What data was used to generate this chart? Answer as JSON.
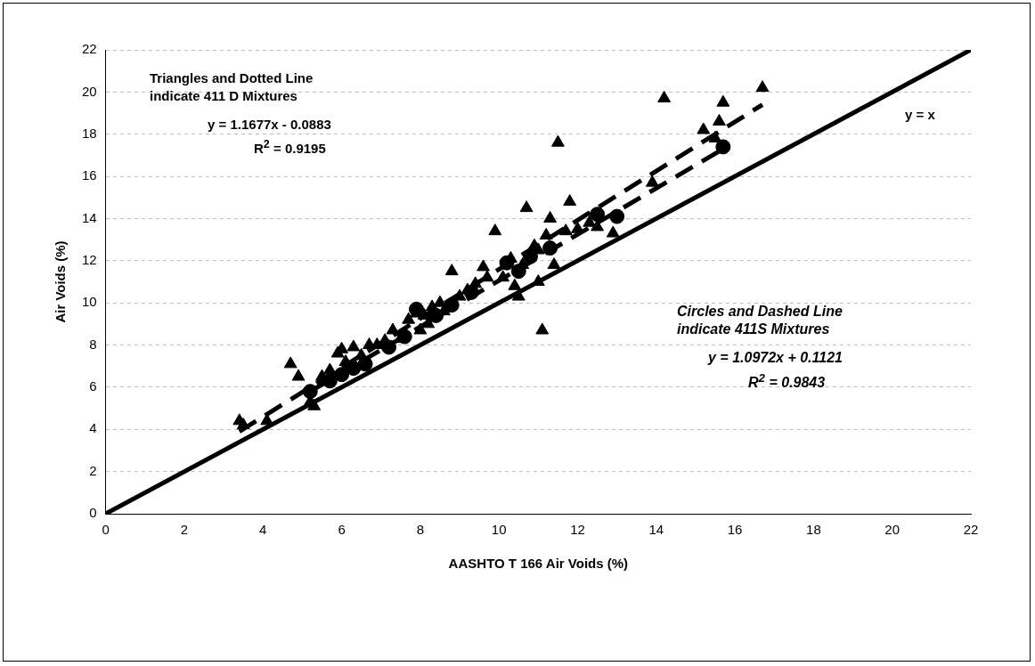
{
  "chart_data": {
    "type": "scatter",
    "xlabel": "AASHTO T 166 Air Voids (%)",
    "ylabel": "Air Voids (%)",
    "xlim": [
      0,
      22
    ],
    "ylim": [
      0,
      22
    ],
    "xticks": [
      0,
      2,
      4,
      6,
      8,
      10,
      12,
      14,
      16,
      18,
      20,
      22
    ],
    "yticks": [
      0,
      2,
      4,
      6,
      8,
      10,
      12,
      14,
      16,
      18,
      20,
      22
    ],
    "grid": "y",
    "legend": false,
    "annotations": [
      "Triangles and Dotted Line indicate 411 D Mixtures",
      "y = 1.1677x - 0.0883",
      "R$^{2}$ = 0.9195",
      "Circles and Dashed Line indicate 411S Mixtures",
      "y = 1.0972x + 0.1121",
      "R$^{2}$ = 0.9843",
      "y = x"
    ],
    "series": [
      {
        "marker": "triangle",
        "color": "#000000",
        "x": [
          3.4,
          3.5,
          4.1,
          4.7,
          4.9,
          5.2,
          5.3,
          5.5,
          5.7,
          5.9,
          6.0,
          6.1,
          6.3,
          6.5,
          6.7,
          6.9,
          7.1,
          7.3,
          7.5,
          7.7,
          7.9,
          8.1,
          8.3,
          8.5,
          8.6,
          8.8,
          9.0,
          9.2,
          9.4,
          9.6,
          9.7,
          9.9,
          10.1,
          10.4,
          10.5,
          10.6,
          10.7,
          10.9,
          11.0,
          11.1,
          11.2,
          11.3,
          11.4,
          11.5,
          11.7,
          11.8,
          12.0,
          12.3,
          12.5,
          12.9,
          13.9,
          14.2,
          15.2,
          15.5,
          15.6,
          15.7,
          16.7,
          8.0,
          8.2,
          10.3,
          11.0
        ],
        "values": [
          4.4,
          4.2,
          4.4,
          7.1,
          6.5,
          5.3,
          5.1,
          6.5,
          6.8,
          7.6,
          7.8,
          7.2,
          7.9,
          7.5,
          8.0,
          8.0,
          8.2,
          8.7,
          8.3,
          9.2,
          9.5,
          9.4,
          9.8,
          10.0,
          9.6,
          11.5,
          10.3,
          10.6,
          10.9,
          11.7,
          11.2,
          13.4,
          11.2,
          10.8,
          10.3,
          11.8,
          14.5,
          12.7,
          11.0,
          8.7,
          13.2,
          14.0,
          11.8,
          17.6,
          13.4,
          14.8,
          13.5,
          13.8,
          13.6,
          13.3,
          15.7,
          19.7,
          18.2,
          17.8,
          18.6,
          19.5,
          20.2,
          8.7,
          9.0,
          12.1,
          12.5
        ]
      },
      {
        "marker": "circle",
        "color": "#000000",
        "x": [
          5.2,
          5.7,
          6.0,
          6.3,
          6.6,
          7.2,
          7.6,
          7.9,
          8.0,
          8.2,
          8.4,
          8.8,
          9.3,
          10.2,
          10.5,
          10.8,
          11.3,
          12.5,
          12.9,
          13.0,
          15.7
        ],
        "values": [
          5.8,
          6.3,
          6.6,
          6.9,
          7.1,
          7.9,
          8.4,
          9.7,
          null,
          null,
          9.4,
          9.9,
          10.5,
          11.9,
          11.5,
          12.2,
          12.6,
          14.2,
          null,
          14.1,
          17.4
        ]
      },
      {
        "type": "line",
        "marker": "none",
        "line_style": "dashed",
        "color": "#000000",
        "x": [
          3.4,
          16.7
        ],
        "values": [
          3.9,
          19.4
        ]
      },
      {
        "type": "line",
        "marker": "none",
        "line_style": "dashed",
        "color": "#000000",
        "x": [
          5.2,
          15.7
        ],
        "values": [
          5.8,
          17.3
        ]
      },
      {
        "type": "line",
        "marker": "none",
        "line_style": "solid",
        "color": "#000000",
        "x": [
          0,
          22
        ],
        "values": [
          0,
          22
        ]
      }
    ]
  }
}
